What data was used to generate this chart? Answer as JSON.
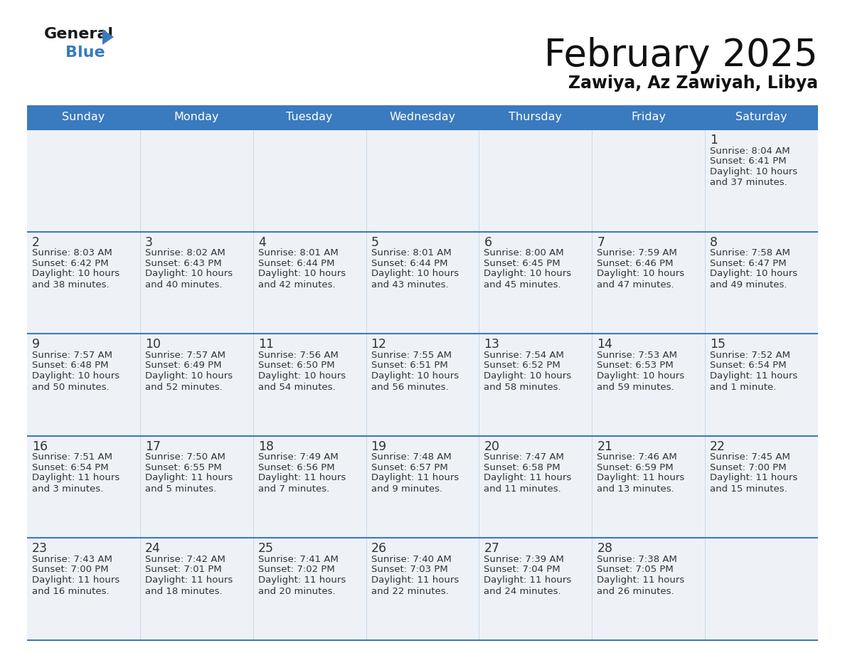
{
  "title": "February 2025",
  "subtitle": "Zawiya, Az Zawiyah, Libya",
  "header_bg_color": "#3a7abf",
  "header_text_color": "#ffffff",
  "cell_bg_color": "#eef2f7",
  "text_color": "#333333",
  "border_color": "#3a7abf",
  "days_of_week": [
    "Sunday",
    "Monday",
    "Tuesday",
    "Wednesday",
    "Thursday",
    "Friday",
    "Saturday"
  ],
  "calendar_data": [
    [
      null,
      null,
      null,
      null,
      null,
      null,
      {
        "day": 1,
        "sunrise": "8:04 AM",
        "sunset": "6:41 PM",
        "daylight": "10 hours\nand 37 minutes."
      }
    ],
    [
      {
        "day": 2,
        "sunrise": "8:03 AM",
        "sunset": "6:42 PM",
        "daylight": "10 hours\nand 38 minutes."
      },
      {
        "day": 3,
        "sunrise": "8:02 AM",
        "sunset": "6:43 PM",
        "daylight": "10 hours\nand 40 minutes."
      },
      {
        "day": 4,
        "sunrise": "8:01 AM",
        "sunset": "6:44 PM",
        "daylight": "10 hours\nand 42 minutes."
      },
      {
        "day": 5,
        "sunrise": "8:01 AM",
        "sunset": "6:44 PM",
        "daylight": "10 hours\nand 43 minutes."
      },
      {
        "day": 6,
        "sunrise": "8:00 AM",
        "sunset": "6:45 PM",
        "daylight": "10 hours\nand 45 minutes."
      },
      {
        "day": 7,
        "sunrise": "7:59 AM",
        "sunset": "6:46 PM",
        "daylight": "10 hours\nand 47 minutes."
      },
      {
        "day": 8,
        "sunrise": "7:58 AM",
        "sunset": "6:47 PM",
        "daylight": "10 hours\nand 49 minutes."
      }
    ],
    [
      {
        "day": 9,
        "sunrise": "7:57 AM",
        "sunset": "6:48 PM",
        "daylight": "10 hours\nand 50 minutes."
      },
      {
        "day": 10,
        "sunrise": "7:57 AM",
        "sunset": "6:49 PM",
        "daylight": "10 hours\nand 52 minutes."
      },
      {
        "day": 11,
        "sunrise": "7:56 AM",
        "sunset": "6:50 PM",
        "daylight": "10 hours\nand 54 minutes."
      },
      {
        "day": 12,
        "sunrise": "7:55 AM",
        "sunset": "6:51 PM",
        "daylight": "10 hours\nand 56 minutes."
      },
      {
        "day": 13,
        "sunrise": "7:54 AM",
        "sunset": "6:52 PM",
        "daylight": "10 hours\nand 58 minutes."
      },
      {
        "day": 14,
        "sunrise": "7:53 AM",
        "sunset": "6:53 PM",
        "daylight": "10 hours\nand 59 minutes."
      },
      {
        "day": 15,
        "sunrise": "7:52 AM",
        "sunset": "6:54 PM",
        "daylight": "11 hours\nand 1 minute."
      }
    ],
    [
      {
        "day": 16,
        "sunrise": "7:51 AM",
        "sunset": "6:54 PM",
        "daylight": "11 hours\nand 3 minutes."
      },
      {
        "day": 17,
        "sunrise": "7:50 AM",
        "sunset": "6:55 PM",
        "daylight": "11 hours\nand 5 minutes."
      },
      {
        "day": 18,
        "sunrise": "7:49 AM",
        "sunset": "6:56 PM",
        "daylight": "11 hours\nand 7 minutes."
      },
      {
        "day": 19,
        "sunrise": "7:48 AM",
        "sunset": "6:57 PM",
        "daylight": "11 hours\nand 9 minutes."
      },
      {
        "day": 20,
        "sunrise": "7:47 AM",
        "sunset": "6:58 PM",
        "daylight": "11 hours\nand 11 minutes."
      },
      {
        "day": 21,
        "sunrise": "7:46 AM",
        "sunset": "6:59 PM",
        "daylight": "11 hours\nand 13 minutes."
      },
      {
        "day": 22,
        "sunrise": "7:45 AM",
        "sunset": "7:00 PM",
        "daylight": "11 hours\nand 15 minutes."
      }
    ],
    [
      {
        "day": 23,
        "sunrise": "7:43 AM",
        "sunset": "7:00 PM",
        "daylight": "11 hours\nand 16 minutes."
      },
      {
        "day": 24,
        "sunrise": "7:42 AM",
        "sunset": "7:01 PM",
        "daylight": "11 hours\nand 18 minutes."
      },
      {
        "day": 25,
        "sunrise": "7:41 AM",
        "sunset": "7:02 PM",
        "daylight": "11 hours\nand 20 minutes."
      },
      {
        "day": 26,
        "sunrise": "7:40 AM",
        "sunset": "7:03 PM",
        "daylight": "11 hours\nand 22 minutes."
      },
      {
        "day": 27,
        "sunrise": "7:39 AM",
        "sunset": "7:04 PM",
        "daylight": "11 hours\nand 24 minutes."
      },
      {
        "day": 28,
        "sunrise": "7:38 AM",
        "sunset": "7:05 PM",
        "daylight": "11 hours\nand 26 minutes."
      },
      null
    ]
  ],
  "logo_general_color": "#1a1a1a",
  "logo_blue_color": "#3a7abf",
  "logo_triangle_color": "#3a7abf"
}
